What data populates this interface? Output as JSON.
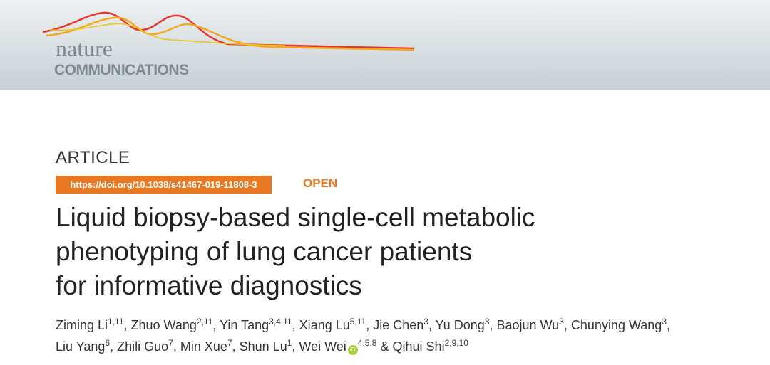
{
  "journal": {
    "name_top": "nature",
    "name_bottom": "COMMUNICATIONS"
  },
  "article": {
    "type": "ARTICLE",
    "doi": "https://doi.org/10.1038/s41467-019-11808-3",
    "access": "OPEN",
    "title_lines": [
      "Liquid biopsy-based single-cell metabolic",
      "phenotyping of lung cancer patients",
      "for informative diagnostics"
    ],
    "author_separator": ",",
    "last_separator": "&",
    "author_lines": [
      [
        {
          "name": "Ziming Li",
          "sup": "1,11"
        },
        {
          "name": "Zhuo Wang",
          "sup": "2,11"
        },
        {
          "name": "Yin Tang",
          "sup": "3,4,11"
        },
        {
          "name": "Xiang Lu",
          "sup": "5,11"
        },
        {
          "name": "Jie Chen",
          "sup": "3"
        },
        {
          "name": "Yu Dong",
          "sup": "3"
        },
        {
          "name": "Baojun Wu",
          "sup": "3"
        },
        {
          "name": "Chunying Wang",
          "sup": "3"
        }
      ],
      [
        {
          "name": "Liu Yang",
          "sup": "6"
        },
        {
          "name": "Zhili Guo",
          "sup": "7"
        },
        {
          "name": "Min Xue",
          "sup": "7"
        },
        {
          "name": "Shun Lu",
          "sup": "1"
        },
        {
          "name": "Wei Wei",
          "sup": "4,5,8",
          "orcid": true
        },
        {
          "name": "Qihui Shi",
          "sup": "2,9,10"
        }
      ]
    ]
  }
}
